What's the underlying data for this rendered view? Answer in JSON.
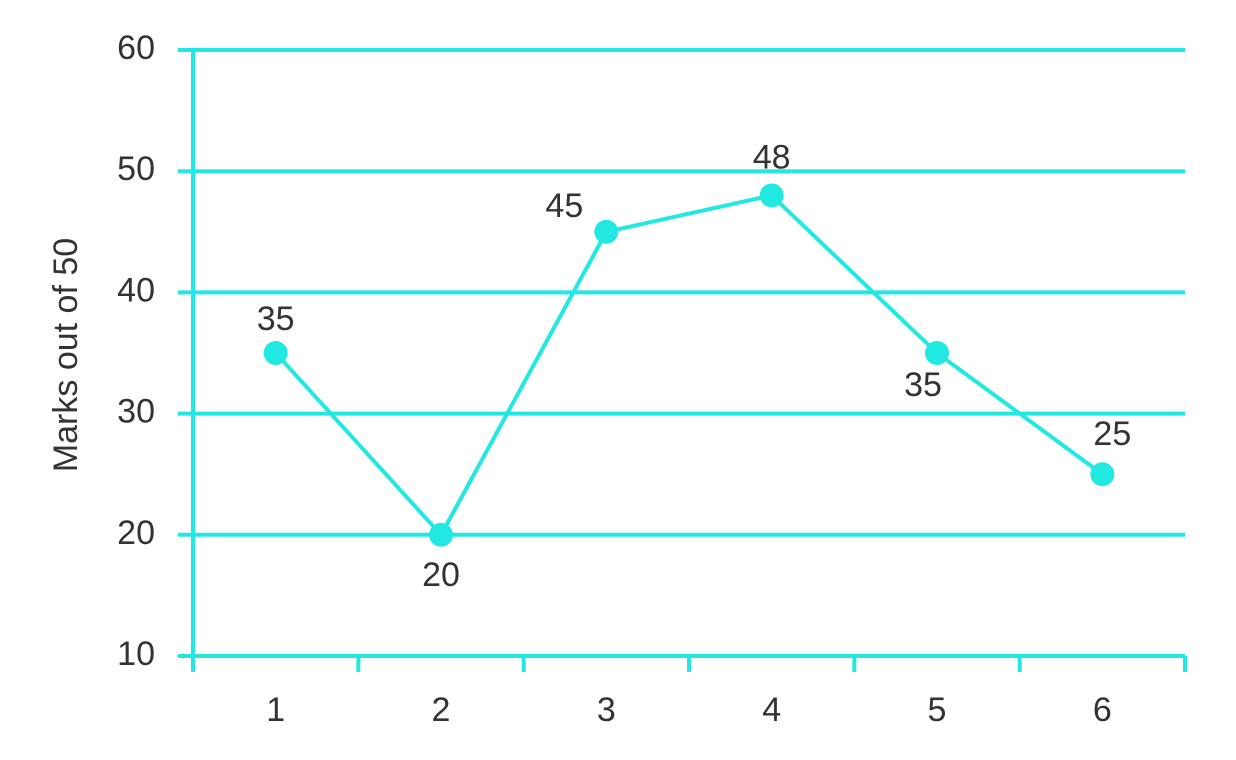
{
  "chart_data": {
    "type": "line",
    "y_label": "Marks out of 50",
    "categories": [
      "1",
      "2",
      "3",
      "4",
      "5",
      "6"
    ],
    "series": [
      {
        "name": "Marks",
        "color": "#22e8e2",
        "values": [
          35,
          20,
          45,
          48,
          35,
          25
        ]
      }
    ],
    "ylim": [
      10,
      60
    ],
    "yticks": [
      10,
      20,
      30,
      40,
      50,
      60
    ],
    "grid": true
  }
}
